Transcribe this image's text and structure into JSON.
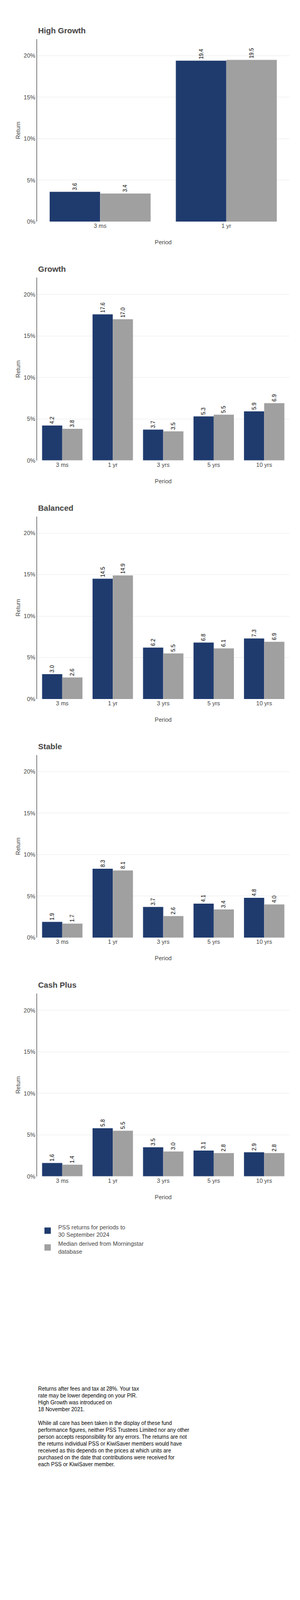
{
  "chart_data": [
    {
      "type": "bar",
      "title": "High Growth",
      "x_label": "Period",
      "y_label": "Return",
      "categories": [
        "3 ms",
        "1 yr"
      ],
      "series": [
        {
          "name": "PSS returns for periods to\n30 September 2024",
          "color": "#1F3B6E",
          "values": [
            3.6,
            19.4
          ],
          "value_labels": [
            "3.6",
            "19.4"
          ]
        },
        {
          "name": "Median derived from Morningstar\ndatabase",
          "color": "#A0A0A0",
          "values": [
            3.4,
            19.5
          ],
          "value_labels": [
            "3.4",
            "19.5"
          ]
        }
      ],
      "ylim": [
        0,
        22
      ],
      "yticks": [
        {
          "value": 0,
          "label": "0%"
        },
        {
          "value": 5,
          "label": "5%"
        },
        {
          "value": 10,
          "label": "10%"
        },
        {
          "value": 15,
          "label": "15%"
        },
        {
          "value": 20,
          "label": "20%"
        }
      ],
      "grid": true,
      "data_labels": true
    },
    {
      "type": "bar",
      "title": "Growth",
      "x_label": "Period",
      "y_label": "Return",
      "categories": [
        "3 ms",
        "1 yr",
        "3 yrs",
        "5 yrs",
        "10 yrs"
      ],
      "series": [
        {
          "name": "PSS returns for periods to\n30 September 2024",
          "color": "#1F3B6E",
          "values": [
            4.2,
            17.6,
            3.7,
            5.3,
            5.9
          ],
          "value_labels": [
            "4.2",
            "17.6",
            "3.7",
            "5.3",
            "5.9"
          ]
        },
        {
          "name": "Median derived from Morningstar\ndatabase",
          "color": "#A0A0A0",
          "values": [
            3.8,
            17.0,
            3.5,
            5.5,
            6.9
          ],
          "value_labels": [
            "3.8",
            "17.0",
            "3.5",
            "5.5",
            "6.9"
          ]
        }
      ],
      "ylim": [
        0,
        22
      ],
      "yticks": [
        {
          "value": 0,
          "label": "0%"
        },
        {
          "value": 5,
          "label": "5%"
        },
        {
          "value": 10,
          "label": "10%"
        },
        {
          "value": 15,
          "label": "15%"
        },
        {
          "value": 20,
          "label": "20%"
        }
      ],
      "grid": true,
      "data_labels": true
    },
    {
      "type": "bar",
      "title": "Balanced",
      "x_label": "Period",
      "y_label": "Return",
      "categories": [
        "3 ms",
        "1 yr",
        "3 yrs",
        "5 yrs",
        "10 yrs"
      ],
      "series": [
        {
          "name": "PSS returns for periods to\n30 September 2024",
          "color": "#1F3B6E",
          "values": [
            3.0,
            14.5,
            6.2,
            6.8,
            7.3
          ],
          "value_labels": [
            "3.0",
            "14.5",
            "6.2",
            "6.8",
            "7.3"
          ]
        },
        {
          "name": "Median derived from Morningstar\ndatabase",
          "color": "#A0A0A0",
          "values": [
            2.6,
            14.9,
            5.5,
            6.1,
            6.9
          ],
          "value_labels": [
            "2.6",
            "14.9",
            "5.5",
            "6.1",
            "6.9"
          ]
        }
      ],
      "ylim": [
        0,
        22
      ],
      "yticks": [
        {
          "value": 0,
          "label": "0%"
        },
        {
          "value": 5,
          "label": "5%"
        },
        {
          "value": 10,
          "label": "10%"
        },
        {
          "value": 15,
          "label": "15%"
        },
        {
          "value": 20,
          "label": "20%"
        }
      ],
      "grid": true,
      "data_labels": true
    },
    {
      "type": "bar",
      "title": "Stable",
      "x_label": "Period",
      "y_label": "Return",
      "categories": [
        "3 ms",
        "1 yr",
        "3 yrs",
        "5 yrs",
        "10 yrs"
      ],
      "series": [
        {
          "name": "PSS returns for periods to\n30 September 2024",
          "color": "#1F3B6E",
          "values": [
            1.9,
            8.3,
            3.7,
            4.1,
            4.8
          ],
          "value_labels": [
            "1.9",
            "8.3",
            "3.7",
            "4.1",
            "4.8"
          ]
        },
        {
          "name": "Median derived from Morningstar\ndatabase",
          "color": "#A0A0A0",
          "values": [
            1.7,
            8.1,
            2.6,
            3.4,
            4.0
          ],
          "value_labels": [
            "1.7",
            "8.1",
            "2.6",
            "3.4",
            "4.0"
          ]
        }
      ],
      "ylim": [
        0,
        22
      ],
      "yticks": [
        {
          "value": 0,
          "label": "0%"
        },
        {
          "value": 5,
          "label": "5%"
        },
        {
          "value": 10,
          "label": "10%"
        },
        {
          "value": 15,
          "label": "15%"
        },
        {
          "value": 20,
          "label": "20%"
        }
      ],
      "grid": true,
      "data_labels": true
    },
    {
      "type": "bar",
      "title": "Cash Plus",
      "x_label": "Period",
      "y_label": "Return",
      "categories": [
        "3 ms",
        "1 yr",
        "3 yrs",
        "5 yrs",
        "10 yrs"
      ],
      "series": [
        {
          "name": "PSS returns for periods to\n30 September 2024",
          "color": "#1F3B6E",
          "values": [
            1.6,
            5.8,
            3.5,
            3.1,
            2.9
          ],
          "value_labels": [
            "1.6",
            "5.8",
            "3.5",
            "3.1",
            "2.9"
          ]
        },
        {
          "name": "Median derived from Morningstar\ndatabase",
          "color": "#A0A0A0",
          "values": [
            1.4,
            5.5,
            3.0,
            2.8,
            2.8
          ],
          "value_labels": [
            "1.4",
            "5.5",
            "3.0",
            "2.8",
            "2.8"
          ]
        }
      ],
      "ylim": [
        0,
        22
      ],
      "yticks": [
        {
          "value": 0,
          "label": "0%"
        },
        {
          "value": 5,
          "label": "5%"
        },
        {
          "value": 10,
          "label": "10%"
        },
        {
          "value": 15,
          "label": "15%"
        },
        {
          "value": 20,
          "label": "20%"
        }
      ],
      "grid": true,
      "data_labels": true
    }
  ],
  "legend": "bottom",
  "footnote": "Returns after fees and tax at 28%. Your tax\nrate may be lower depending on your PIR.\nHigh Growth was introduced on\n18 November 2021.\n\nWhile all care has been taken in the display of these fund\nperformance figures, neither PSS Trustees Limited nor any other\nperson accepts responsibility for any errors. The returns are not\nthe returns individual PSS or KiwiSaver members would have\nreceived as this depends on the prices at which units are\npurchased on the date that contributions were received for\neach PSS or KiwiSaver member."
}
